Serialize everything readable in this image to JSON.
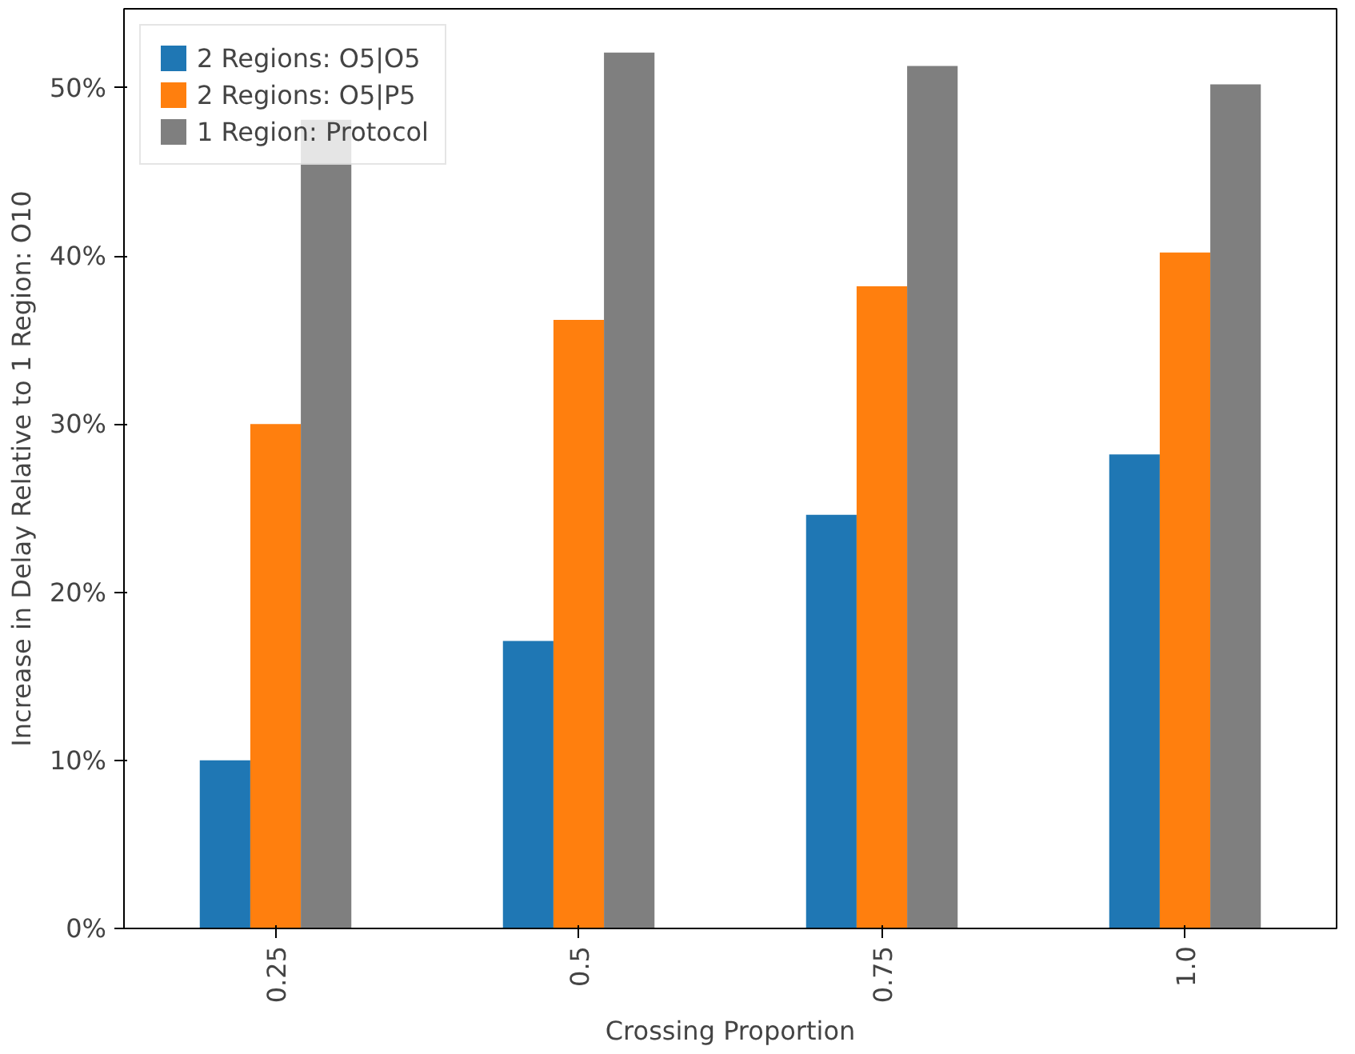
{
  "chart_data": {
    "type": "bar",
    "xlabel": "Crossing Proportion",
    "ylabel": "Increase in Delay Relative to 1 Region: O10",
    "categories": [
      "0.25",
      "0.5",
      "0.75",
      "1.0"
    ],
    "series": [
      {
        "name": "2 Regions: O5|O5",
        "color": "#1f77b4",
        "values": [
          10.0,
          17.1,
          24.6,
          28.2
        ]
      },
      {
        "name": "2 Regions: O5|P5",
        "color": "#ff7f0e",
        "values": [
          30.0,
          36.2,
          38.2,
          40.2
        ]
      },
      {
        "name": "1 Region: Protocol",
        "color": "#7f7f7f",
        "values": [
          48.1,
          52.1,
          51.3,
          50.2
        ]
      }
    ],
    "ylim": [
      0,
      54.7
    ],
    "yticks": [
      {
        "value": 0,
        "label": "0%"
      },
      {
        "value": 10,
        "label": "10%"
      },
      {
        "value": 20,
        "label": "20%"
      },
      {
        "value": 30,
        "label": "30%"
      },
      {
        "value": 40,
        "label": "40%"
      },
      {
        "value": 50,
        "label": "50%"
      }
    ],
    "legend": "top left",
    "grid": false
  }
}
